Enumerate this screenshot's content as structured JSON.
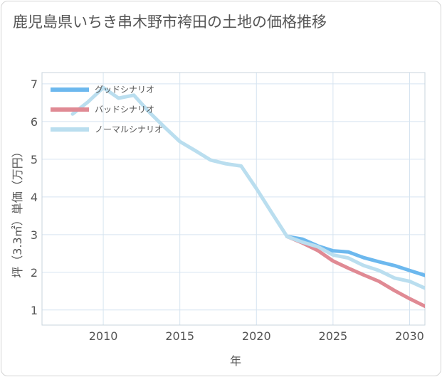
{
  "chart_data": {
    "type": "line",
    "title": "鹿児島県いちき串木野市袴田の土地の価格推移",
    "xlabel": "年",
    "ylabel": "坪（3.3㎡）単価（万円）",
    "xlim": [
      2006,
      2031
    ],
    "ylim": [
      0.6,
      7.3
    ],
    "xticks": [
      2010,
      2015,
      2020,
      2025,
      2030
    ],
    "yticks": [
      1,
      2,
      3,
      4,
      5,
      6,
      7
    ],
    "grid": true,
    "legend_position": "top-left",
    "series": [
      {
        "name": "グッドシナリオ",
        "color": "#6cb8ee",
        "x": [
          2022,
          2023,
          2024,
          2025,
          2026,
          2027,
          2028,
          2029,
          2030,
          2031
        ],
        "y": [
          2.95,
          2.88,
          2.7,
          2.57,
          2.54,
          2.39,
          2.28,
          2.18,
          2.05,
          1.92
        ]
      },
      {
        "name": "バッドシナリオ",
        "color": "#e08a94",
        "x": [
          2022,
          2023,
          2024,
          2025,
          2026,
          2027,
          2028,
          2029,
          2030,
          2031
        ],
        "y": [
          2.95,
          2.78,
          2.58,
          2.3,
          2.11,
          1.93,
          1.76,
          1.52,
          1.3,
          1.1
        ]
      },
      {
        "name": "ノーマルシナリオ",
        "color": "#badeef",
        "x": [
          2008,
          2009,
          2010,
          2011,
          2012,
          2013,
          2014,
          2015,
          2016,
          2017,
          2018,
          2019,
          2020,
          2021,
          2022,
          2023,
          2024,
          2025,
          2026,
          2027,
          2028,
          2029,
          2030,
          2031
        ],
        "y": [
          6.2,
          6.52,
          6.9,
          6.62,
          6.7,
          6.25,
          5.85,
          5.47,
          5.23,
          4.98,
          4.88,
          4.82,
          4.22,
          3.58,
          2.95,
          2.8,
          2.68,
          2.46,
          2.38,
          2.18,
          2.05,
          1.85,
          1.76,
          1.58
        ]
      }
    ]
  }
}
